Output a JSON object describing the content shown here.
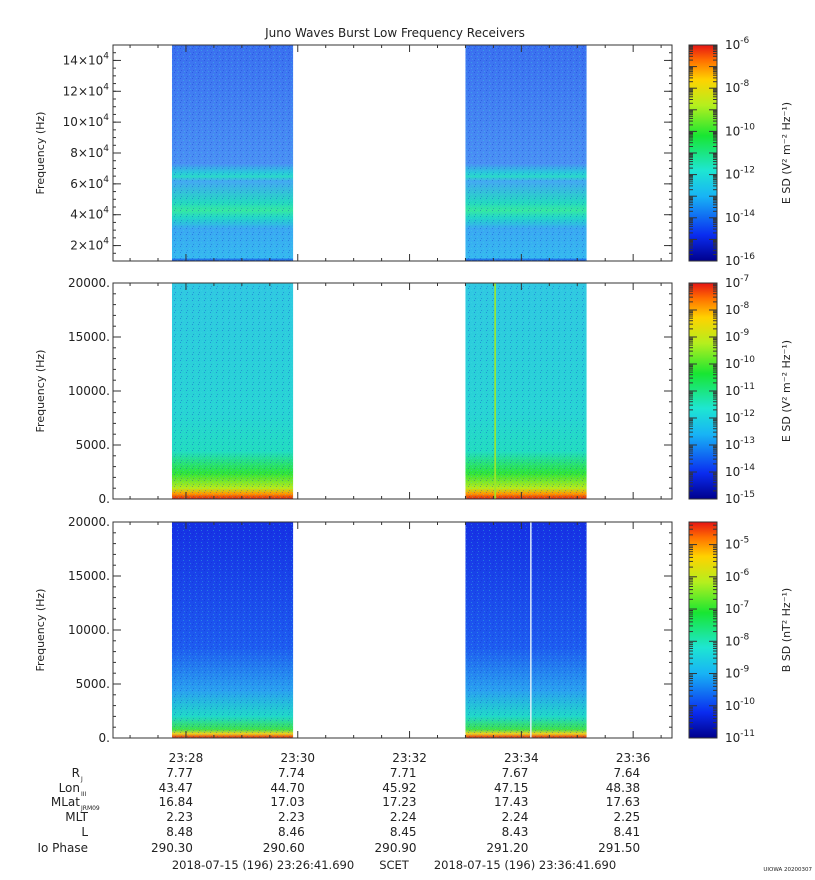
{
  "chart_data": [
    {
      "type": "heatmap",
      "title": "Juno Waves Burst Low Frequency Receivers",
      "ylabel": "Frequency (Hz)",
      "y_is_power_of_ten_scaled": true,
      "yticks": [
        {
          "mant": "2",
          "exp": "4"
        },
        {
          "mant": "4",
          "exp": "4"
        },
        {
          "mant": "6",
          "exp": "4"
        },
        {
          "mant": "8",
          "exp": "4"
        },
        {
          "mant": "10",
          "exp": "4"
        },
        {
          "mant": "12",
          "exp": "4"
        },
        {
          "mant": "14",
          "exp": "4"
        }
      ],
      "ylim": [
        10000,
        150000
      ],
      "data_windows_time": [
        [
          "23:27:45",
          "23:29:55"
        ],
        [
          "23:33:00",
          "23:35:10"
        ]
      ],
      "bands": [
        {
          "frequency_hz": 40000,
          "note": "enhanced emission"
        },
        {
          "frequency_hz": 63000,
          "note": "enhanced emission"
        }
      ],
      "colorbar": {
        "label": "E SD (V² m⁻² Hz⁻¹)",
        "ticks": [
          {
            "base": "10",
            "exp": "-6"
          },
          {
            "base": "10",
            "exp": "-8"
          },
          {
            "base": "10",
            "exp": "-10"
          },
          {
            "base": "10",
            "exp": "-12"
          },
          {
            "base": "10",
            "exp": "-14"
          },
          {
            "base": "10",
            "exp": "-16"
          }
        ],
        "range_exp": [
          -16,
          -6
        ],
        "scale": "log"
      }
    },
    {
      "type": "heatmap",
      "ylabel": "Frequency (Hz)",
      "yticks": [
        "20000.",
        "15000.",
        "10000.",
        "5000.",
        "0."
      ],
      "ylim": [
        0,
        20000
      ],
      "data_windows_time": [
        [
          "23:27:45",
          "23:29:55"
        ],
        [
          "23:33:00",
          "23:35:10"
        ]
      ],
      "colorbar": {
        "label": "E SD (V² m⁻² Hz⁻¹)",
        "ticks": [
          {
            "base": "10",
            "exp": "-7"
          },
          {
            "base": "10",
            "exp": "-8"
          },
          {
            "base": "10",
            "exp": "-9"
          },
          {
            "base": "10",
            "exp": "-10"
          },
          {
            "base": "10",
            "exp": "-11"
          },
          {
            "base": "10",
            "exp": "-12"
          },
          {
            "base": "10",
            "exp": "-13"
          },
          {
            "base": "10",
            "exp": "-14"
          },
          {
            "base": "10",
            "exp": "-15"
          }
        ],
        "range_exp": [
          -15,
          -7
        ],
        "scale": "log"
      }
    },
    {
      "type": "heatmap",
      "ylabel": "Frequency (Hz)",
      "yticks": [
        "20000.",
        "15000.",
        "10000.",
        "5000.",
        "0."
      ],
      "ylim": [
        0,
        20000
      ],
      "data_windows_time": [
        [
          "23:27:45",
          "23:29:55"
        ],
        [
          "23:33:00",
          "23:35:10"
        ]
      ],
      "colorbar": {
        "label": "B SD (nT² Hz⁻¹)",
        "ticks": [
          {
            "base": "10",
            "exp": "-5"
          },
          {
            "base": "10",
            "exp": "-6"
          },
          {
            "base": "10",
            "exp": "-7"
          },
          {
            "base": "10",
            "exp": "-8"
          },
          {
            "base": "10",
            "exp": "-9"
          },
          {
            "base": "10",
            "exp": "-10"
          },
          {
            "base": "10",
            "exp": "-11"
          }
        ],
        "range_exp": [
          -11,
          -4.3
        ],
        "scale": "log"
      }
    }
  ],
  "x_axis": {
    "range_minutes": [
      "23:26:41.690",
      "23:36:41.690"
    ],
    "ticks": [
      "23:28",
      "23:30",
      "23:32",
      "23:34",
      "23:36"
    ]
  },
  "ephemeris": {
    "rows": [
      {
        "label": "R",
        "sub": "J",
        "values": [
          "7.77",
          "7.74",
          "7.71",
          "7.67",
          "7.64"
        ]
      },
      {
        "label": "Lon",
        "sub": "III",
        "values": [
          "43.47",
          "44.70",
          "45.92",
          "47.15",
          "48.38"
        ]
      },
      {
        "label": "MLat",
        "sub": "JRM09",
        "values": [
          "16.84",
          "17.03",
          "17.23",
          "17.43",
          "17.63"
        ]
      },
      {
        "label": "MLT",
        "sub": "",
        "values": [
          "2.23",
          "2.23",
          "2.24",
          "2.24",
          "2.25"
        ]
      },
      {
        "label": "L",
        "sub": "",
        "values": [
          "8.48",
          "8.46",
          "8.45",
          "8.43",
          "8.41"
        ]
      },
      {
        "label": "Io Phase",
        "sub": "",
        "values": [
          "290.30",
          "290.60",
          "290.90",
          "291.20",
          "291.50"
        ]
      }
    ]
  },
  "footer": {
    "start": "2018-07-15 (196) 23:26:41.690",
    "scet": "SCET",
    "end": "2018-07-15 (196) 23:36:41.690",
    "stamp": "UIOWA 20200307"
  }
}
